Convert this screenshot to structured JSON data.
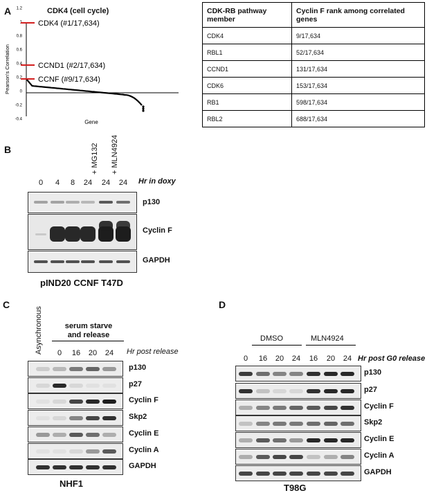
{
  "panelA": {
    "letter": "A",
    "chart_title": "CDK4 (cell cycle)",
    "chart_data": {
      "type": "scatter",
      "title": "CDK4 (cell cycle)",
      "xlabel": "Gene",
      "ylabel": "Pearson's Correlation",
      "yticks": [
        "1.2",
        "1",
        "0.8",
        "0.6",
        "0.4",
        "0.2",
        "0",
        "-0.2",
        "-0.4"
      ],
      "ylim": [
        -0.4,
        1.2
      ],
      "highlighted": [
        {
          "label": "CDK4 (#1/17,634)",
          "rank": 1,
          "value": 1.0
        },
        {
          "label": "CCND1 (#2/17,634)",
          "rank": 2,
          "value": 0.4
        },
        {
          "label": "CCNF (#9/17,634)",
          "rank": 9,
          "value": 0.2
        }
      ],
      "total_genes": 17634
    },
    "table": {
      "headers": [
        "CDK-RB pathway member",
        "Cyclin F rank among correlated genes"
      ],
      "rows": [
        [
          "CDK4",
          "9/17,634"
        ],
        [
          "RBL1",
          "52/17,634"
        ],
        [
          "CCND1",
          "131/17,634"
        ],
        [
          "CDK6",
          "153/17,634"
        ],
        [
          "RB1",
          "598/17,634"
        ],
        [
          "RBL2",
          "688/17,634"
        ]
      ]
    }
  },
  "panelB": {
    "letter": "B",
    "treatments": [
      "+ MG132",
      "+ MLN4924"
    ],
    "lanes": [
      "0",
      "4",
      "8",
      "24",
      "24",
      "24"
    ],
    "axis_label": "Hr in doxy",
    "rows": [
      "p130",
      "Cyclin F",
      "GAPDH"
    ],
    "caption": "pIND20 CCNF T47D"
  },
  "panelC": {
    "letter": "C",
    "async_label": "Asynchronous",
    "group_label_line1": "serum starve",
    "group_label_line2": "and release",
    "lanes": [
      "0",
      "16",
      "20",
      "24"
    ],
    "axis_label": "Hr post release",
    "rows": [
      "p130",
      "p27",
      "Cyclin F",
      "Skp2",
      "Cyclin E",
      "Cyclin A",
      "GAPDH"
    ],
    "caption": "NHF1"
  },
  "panelD": {
    "letter": "D",
    "groups": [
      "DMSO",
      "MLN4924"
    ],
    "lanes": [
      "0",
      "16",
      "20",
      "24",
      "16",
      "20",
      "24"
    ],
    "axis_label": "Hr post G0 release",
    "rows": [
      "p130",
      "p27",
      "Cyclin F",
      "Skp2",
      "Cyclin E",
      "Cyclin A",
      "GAPDH"
    ],
    "caption": "T98G"
  }
}
